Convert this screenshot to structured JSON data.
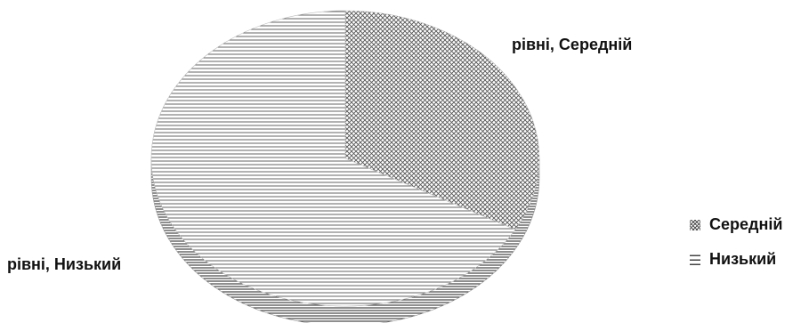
{
  "chart_data": {
    "type": "pie",
    "style": "3d",
    "slices": [
      {
        "name": "Середній",
        "value": 33,
        "label": "рівні, Середній",
        "pattern": "crosshatch"
      },
      {
        "name": "Низький",
        "value": 67,
        "label": "рівні, Низький",
        "pattern": "horizontal-lines"
      }
    ],
    "legend": {
      "position": "right",
      "entries": [
        "Середній",
        "Низький"
      ]
    }
  },
  "colors": {
    "hatch": "#555555",
    "lines": "#444444",
    "text": "#111111",
    "background": "#ffffff"
  }
}
